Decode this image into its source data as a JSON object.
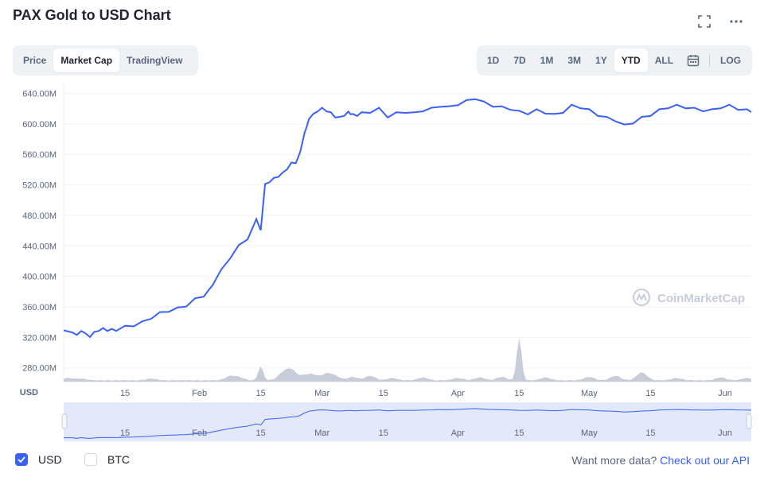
{
  "page": {
    "title": "PAX Gold to USD Chart"
  },
  "icons": {
    "fullscreen": "fullscreen-icon",
    "more": "more-icon",
    "calendar": "calendar-icon",
    "watermark": "coinmarketcap-logo-icon"
  },
  "view_tabs": [
    {
      "label": "Price",
      "active": false
    },
    {
      "label": "Market Cap",
      "active": true
    },
    {
      "label": "TradingView",
      "active": false
    }
  ],
  "range_tabs": [
    {
      "label": "1D",
      "active": false
    },
    {
      "label": "7D",
      "active": false
    },
    {
      "label": "1M",
      "active": false
    },
    {
      "label": "3M",
      "active": false
    },
    {
      "label": "1Y",
      "active": false
    },
    {
      "label": "YTD",
      "active": true
    },
    {
      "label": "ALL",
      "active": false
    }
  ],
  "log_label": "LOG",
  "watermark": "CoinMarketCap",
  "legend": [
    {
      "label": "USD",
      "checked": true
    },
    {
      "label": "BTC",
      "checked": false
    }
  ],
  "api": {
    "prefix": "Want more data?",
    "link": "Check out our API"
  },
  "colors": {
    "line": "#3861fb",
    "volume": "#c7ccd9",
    "navigator_fill": "#e3e8fb",
    "accent": "#3861fb"
  },
  "chart_data": {
    "type": "line",
    "ylabel": "USD",
    "y_ticks": [
      "640.00M",
      "600.00M",
      "560.00M",
      "520.00M",
      "480.00M",
      "440.00M",
      "400.00M",
      "360.00M",
      "320.00M",
      "280.00M"
    ],
    "y_tick_values": [
      640,
      600,
      560,
      520,
      480,
      440,
      400,
      360,
      320,
      280
    ],
    "ylim": [
      262,
      652
    ],
    "y_unit": "M",
    "x_ticks": [
      {
        "label": "15",
        "day": 14
      },
      {
        "label": "Feb",
        "day": 31
      },
      {
        "label": "15",
        "day": 45
      },
      {
        "label": "Mar",
        "day": 59
      },
      {
        "label": "15",
        "day": 73
      },
      {
        "label": "Apr",
        "day": 90
      },
      {
        "label": "15",
        "day": 104
      },
      {
        "label": "May",
        "day": 120
      },
      {
        "label": "15",
        "day": 134
      },
      {
        "label": "Jun",
        "day": 151
      }
    ],
    "xlim": [
      0,
      157
    ],
    "grid": true,
    "series": [
      {
        "x": [
          0,
          2,
          3,
          4,
          5,
          6,
          7,
          8,
          9,
          10,
          11,
          12,
          14,
          16,
          18,
          20,
          22,
          24,
          26,
          28,
          30,
          32,
          33,
          34,
          36,
          38,
          40,
          42,
          44,
          45,
          46,
          47,
          48,
          49,
          50,
          51,
          52,
          53,
          54,
          55,
          55.5,
          56,
          57,
          58,
          59,
          60,
          61,
          62,
          63,
          64,
          65,
          65.5,
          66,
          67,
          68,
          70,
          72,
          74,
          76,
          78,
          80,
          82,
          84,
          86,
          88,
          90,
          92,
          94,
          96,
          98,
          100,
          102,
          104,
          106,
          108,
          110,
          112,
          114,
          116,
          118,
          120,
          122,
          124,
          126,
          128,
          130,
          132,
          134,
          136,
          138,
          140,
          142,
          144,
          146,
          148,
          150,
          152,
          154,
          156,
          157
        ],
        "values": [
          328,
          328,
          322,
          330,
          324,
          322,
          326,
          330,
          331,
          330,
          330,
          330,
          334,
          336,
          340,
          346,
          352,
          355,
          358,
          362,
          370,
          375,
          380,
          390,
          408,
          425,
          440,
          450,
          474,
          462,
          520,
          525,
          528,
          532,
          535,
          542,
          548,
          550,
          562,
          590,
          595,
          608,
          612,
          618,
          620,
          618,
          614,
          610,
          608,
          612,
          615,
          614,
          612,
          612,
          614,
          616,
          620,
          610,
          614,
          616,
          614,
          618,
          620,
          624,
          622,
          626,
          630,
          634,
          628,
          624,
          622,
          620,
          616,
          614,
          618,
          615,
          612,
          616,
          624,
          622,
          618,
          612,
          608,
          605,
          598,
          602,
          608,
          612,
          618,
          622,
          624,
          622,
          620,
          618,
          618,
          622,
          624,
          620,
          618,
          617
        ]
      }
    ]
  }
}
